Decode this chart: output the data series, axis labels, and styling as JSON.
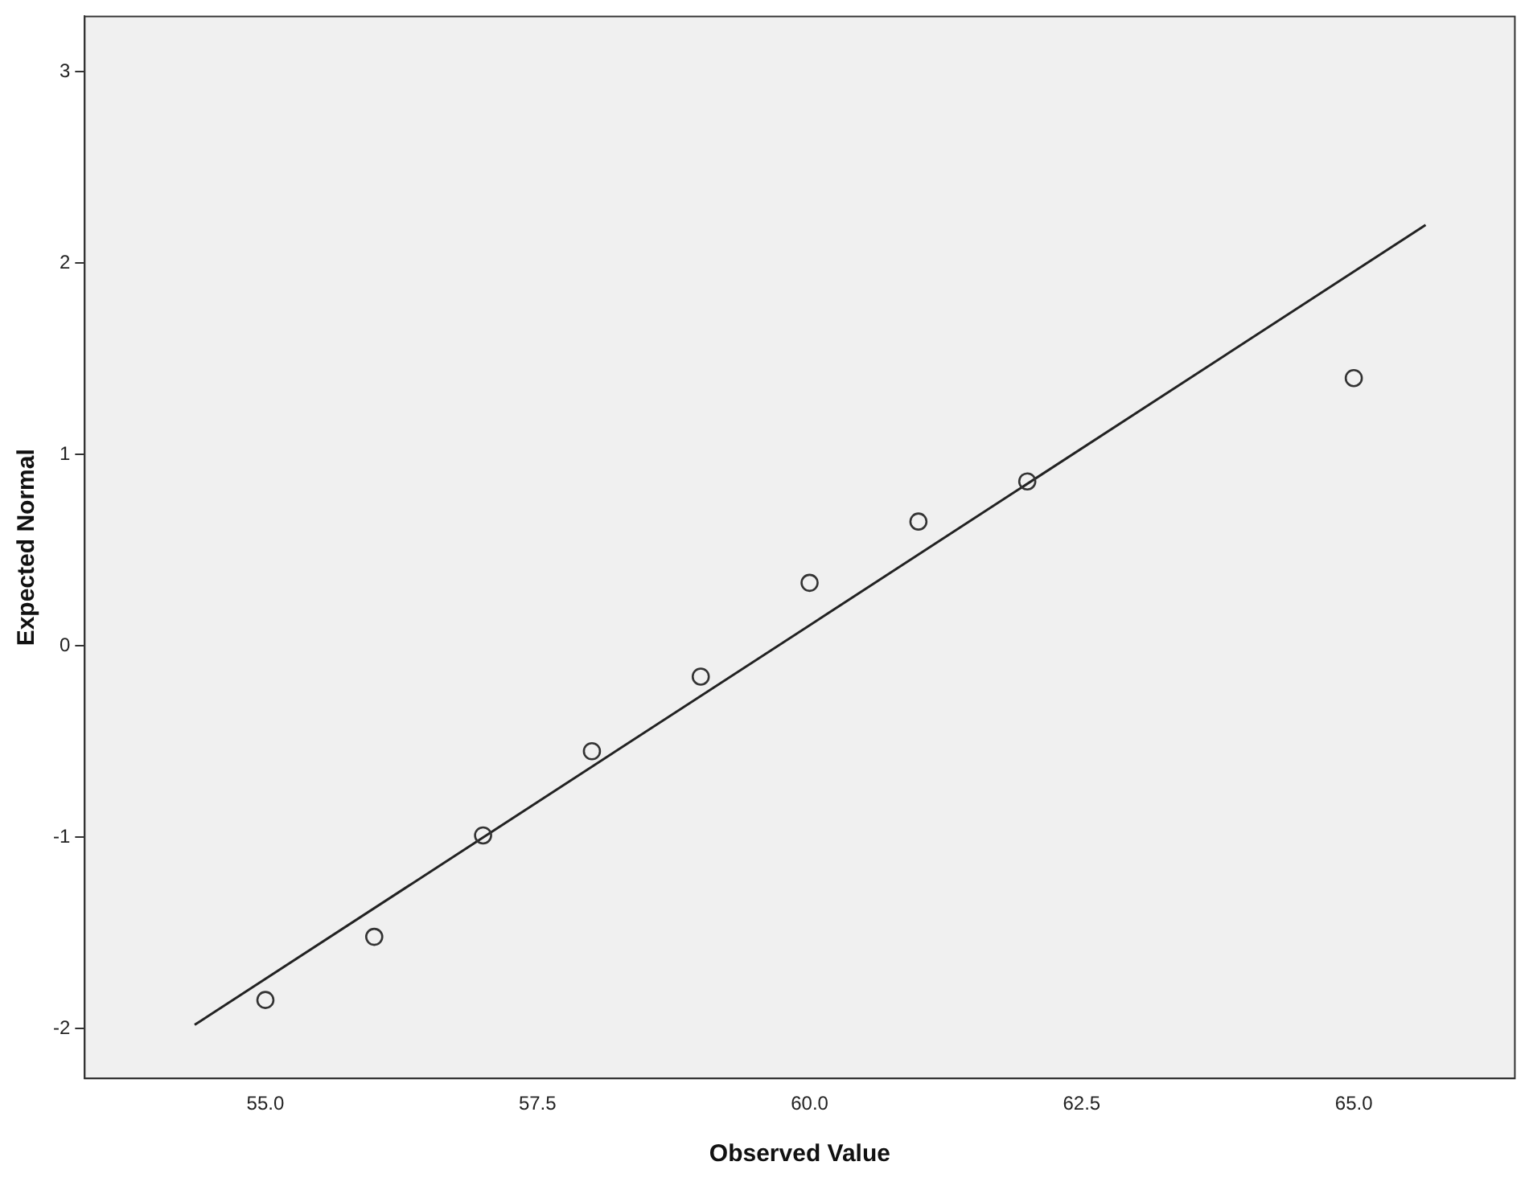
{
  "chart_data": {
    "type": "scatter",
    "xlabel": "Observed Value",
    "ylabel": "Expected Normal",
    "xlim": [
      53.34,
      66.48
    ],
    "ylim": [
      -2.26,
      3.29
    ],
    "xticks": [
      {
        "value": 55,
        "label": "55.0"
      },
      {
        "value": 57.5,
        "label": "57.5"
      },
      {
        "value": 60,
        "label": "60.0"
      },
      {
        "value": 62.5,
        "label": "62.5"
      },
      {
        "value": 65,
        "label": "65.0"
      }
    ],
    "yticks": [
      -2,
      -1,
      0,
      1,
      2,
      3
    ],
    "grid": false,
    "legend": false,
    "marker": "circle",
    "series": [
      {
        "color": "#333333",
        "x": [
          55,
          56,
          57,
          58,
          59,
          60,
          61,
          62,
          65
        ],
        "values": [
          -1.85,
          -1.52,
          -0.99,
          -0.55,
          -0.16,
          0.33,
          0.65,
          0.86,
          1.4
        ]
      },
      {
        "type": "line",
        "color": "#222222",
        "line_style": "solid",
        "marker": "none",
        "x": [
          54.35,
          65.66
        ],
        "values": [
          -1.98,
          2.2
        ]
      }
    ]
  }
}
